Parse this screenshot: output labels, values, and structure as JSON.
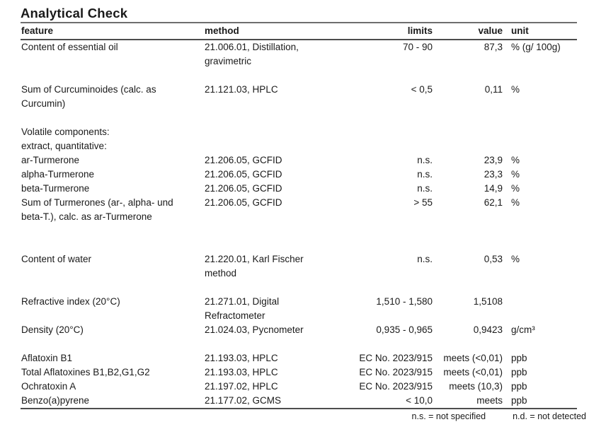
{
  "title": "Analytical Check",
  "table": {
    "columns": {
      "feature": "feature",
      "method": "method",
      "limits": "limits",
      "value": "value",
      "unit": "unit"
    },
    "rows": [
      {
        "feature": "Content of essential oil",
        "method": "21.006.01, Distillation,\ngravimetric",
        "limits": "70 - 90",
        "value": "87,3",
        "unit": "% (g/ 100g)"
      },
      {
        "feature": "Sum of Curcuminoides (calc. as\nCurcumin)",
        "method": "21.121.03, HPLC",
        "limits": "< 0,5",
        "value": "0,11",
        "unit": "%"
      },
      {
        "feature": "Volatile components:\nextract, quantitative:",
        "method": "",
        "limits": "",
        "value": "",
        "unit": ""
      },
      {
        "feature": "ar-Turmerone",
        "method": "21.206.05, GCFID",
        "limits": "n.s.",
        "value": "23,9",
        "unit": "%"
      },
      {
        "feature": "alpha-Turmerone",
        "method": "21.206.05, GCFID",
        "limits": "n.s.",
        "value": "23,3",
        "unit": "%"
      },
      {
        "feature": "beta-Turmerone",
        "method": "21.206.05, GCFID",
        "limits": "n.s.",
        "value": "14,9",
        "unit": "%"
      },
      {
        "feature": "Sum of Turmerones (ar-, alpha- und\nbeta-T.), calc. as ar-Turmerone",
        "method": "21.206.05, GCFID",
        "limits": "> 55",
        "value": "62,1",
        "unit": "%"
      },
      {
        "feature": "Content of water",
        "method": "21.220.01, Karl Fischer\nmethod",
        "limits": "n.s.",
        "value": "0,53",
        "unit": "%"
      },
      {
        "feature": "Refractive index (20°C)",
        "method": "21.271.01, Digital\nRefractometer",
        "limits": "1,510 - 1,580",
        "value": "1,5108",
        "unit": ""
      },
      {
        "feature": "Density (20°C)",
        "method": "21.024.03, Pycnometer",
        "limits": "0,935 - 0,965",
        "value": "0,9423",
        "unit": "g/cm³"
      },
      {
        "feature": "Aflatoxin B1",
        "method": "21.193.03, HPLC",
        "limits": "EC No. 2023/915",
        "value": "meets (<0,01)",
        "unit": "ppb"
      },
      {
        "feature": "Total Aflatoxines B1,B2,G1,G2",
        "method": "21.193.03, HPLC",
        "limits": "EC No. 2023/915",
        "value": "meets (<0,01)",
        "unit": "ppb"
      },
      {
        "feature": "Ochratoxin A",
        "method": "21.197.02, HPLC",
        "limits": "EC No. 2023/915",
        "value": "meets (10,3)",
        "unit": "ppb"
      },
      {
        "feature": "Benzo(a)pyrene",
        "method": "21.177.02, GCMS",
        "limits": "< 10,0",
        "value": "meets",
        "unit": "ppb"
      }
    ]
  },
  "footer": {
    "ns_note": "n.s. = not specified",
    "nd_note": "n.d. = not detected"
  },
  "colors": {
    "text": "#1a1a1a",
    "title_rule": "#6e6e6e",
    "header_rule": "#4d4d4d",
    "bottom_rule": "#4d4d4d",
    "background": "#ffffff"
  }
}
